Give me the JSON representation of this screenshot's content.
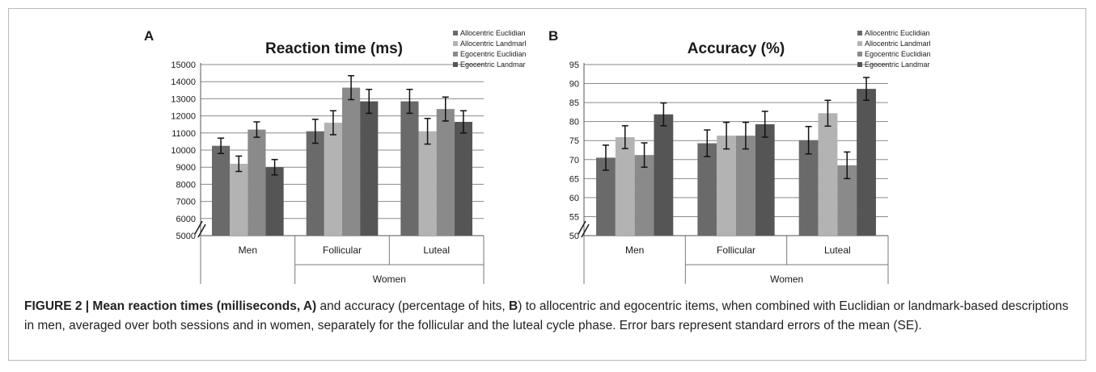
{
  "panels": [
    {
      "letter": "A",
      "chart_data": {
        "type": "bar",
        "title": "Reaction time (ms)",
        "categories": [
          "Men",
          "Follicular",
          "Luteal"
        ],
        "group_label": "Women",
        "series": [
          {
            "name": "Allocentric Euclidian",
            "color": "#6a6a6a",
            "values": [
              10250,
              11100,
              12850
            ],
            "errors": [
              450,
              700,
              700
            ]
          },
          {
            "name": "Allocentric Landmark",
            "color": "#b3b3b3",
            "values": [
              9200,
              11600,
              11100
            ],
            "errors": [
              450,
              700,
              750
            ]
          },
          {
            "name": "Egocentric Euclidian",
            "color": "#8a8a8a",
            "values": [
              11200,
              13650,
              12400
            ],
            "errors": [
              450,
              700,
              700
            ]
          },
          {
            "name": "Egocentric Landmark",
            "color": "#555555",
            "values": [
              9000,
              12850,
              11650
            ],
            "errors": [
              450,
              700,
              650
            ]
          }
        ],
        "ylim": [
          5000,
          15000
        ],
        "yticks": [
          "5000",
          "6000",
          "7000",
          "8000",
          "9000",
          "10000",
          "11000",
          "12000",
          "13000",
          "14000",
          "15000"
        ],
        "axis_break": true,
        "grid": true,
        "legend_position": "top-right"
      }
    },
    {
      "letter": "B",
      "chart_data": {
        "type": "bar",
        "title": "Accuracy  (%)",
        "categories": [
          "Men",
          "Follicular",
          "Luteal"
        ],
        "group_label": "Women",
        "series": [
          {
            "name": "Allocentric Euclidian",
            "color": "#6a6a6a",
            "values": [
              70.5,
              74.3,
              75.1
            ],
            "errors": [
              3.3,
              3.5,
              3.6
            ]
          },
          {
            "name": "Allocentric Landmark",
            "color": "#b3b3b3",
            "values": [
              75.9,
              76.3,
              82.2
            ],
            "errors": [
              3.0,
              3.5,
              3.4
            ]
          },
          {
            "name": "Egocentric Euclidian",
            "color": "#8a8a8a",
            "values": [
              71.2,
              76.3,
              68.5
            ],
            "errors": [
              3.2,
              3.5,
              3.5
            ]
          },
          {
            "name": "Egocentric Landmark",
            "color": "#555555",
            "values": [
              81.9,
              79.3,
              88.6
            ],
            "errors": [
              3.0,
              3.4,
              3.0
            ]
          }
        ],
        "ylim": [
          50,
          95
        ],
        "yticks": [
          "50",
          "55",
          "60",
          "65",
          "70",
          "75",
          "80",
          "85",
          "90",
          "95"
        ],
        "axis_break": true,
        "grid": true,
        "legend_position": "top-right"
      }
    }
  ],
  "caption": {
    "bold": "FIGURE 2 | Mean reaction times (milliseconds, A)",
    "part1": " and accuracy (percentage of hits, ",
    "bold2": "B",
    "part2": ") to allocentric and egocentric items, when combined with Euclidian or landmark-based descriptions in men, averaged over both sessions and in women, separately for the follicular and the luteal cycle phase. Error bars represent standard errors of the mean (SE)."
  }
}
